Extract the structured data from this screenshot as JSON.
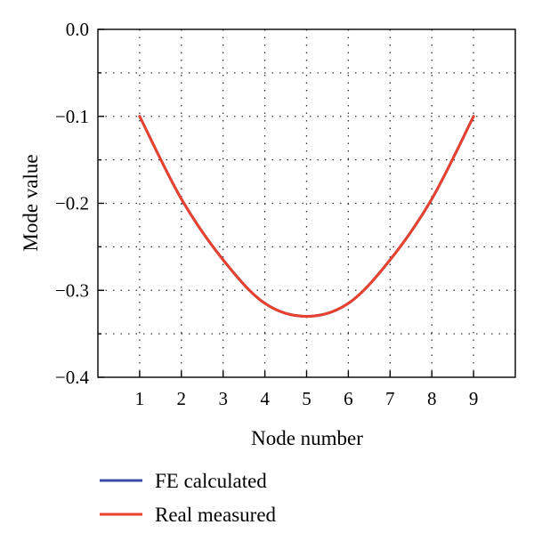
{
  "chart_data": {
    "type": "line",
    "title": "",
    "xlabel": "Node number",
    "ylabel": "Mode value",
    "xlim": [
      0,
      10
    ],
    "ylim": [
      -0.4,
      0.0
    ],
    "x_ticks": [
      1,
      2,
      3,
      4,
      5,
      6,
      7,
      8,
      9
    ],
    "x_tick_labels": [
      "1",
      "2",
      "3",
      "4",
      "5",
      "6",
      "7",
      "8",
      "9"
    ],
    "y_ticks": [
      0.0,
      -0.1,
      -0.2,
      -0.3,
      -0.4
    ],
    "y_tick_labels": [
      "0.0",
      "−0.1",
      "−0.2",
      "−0.3",
      "−0.4"
    ],
    "grid": true,
    "legend_position": "bottom-left, outside plot",
    "series": [
      {
        "name": "FE calculated",
        "color": "#3b4ba3",
        "x": [
          1,
          2,
          3,
          4,
          5,
          6,
          7,
          8,
          9
        ],
        "y": [
          -0.1,
          -0.195,
          -0.265,
          -0.315,
          -0.33,
          -0.315,
          -0.265,
          -0.195,
          -0.1
        ]
      },
      {
        "name": "Real measured",
        "color": "#e8412e",
        "x": [
          1,
          2,
          3,
          4,
          5,
          6,
          7,
          8,
          9
        ],
        "y": [
          -0.1,
          -0.195,
          -0.265,
          -0.315,
          -0.33,
          -0.315,
          -0.265,
          -0.195,
          -0.1
        ]
      }
    ]
  }
}
